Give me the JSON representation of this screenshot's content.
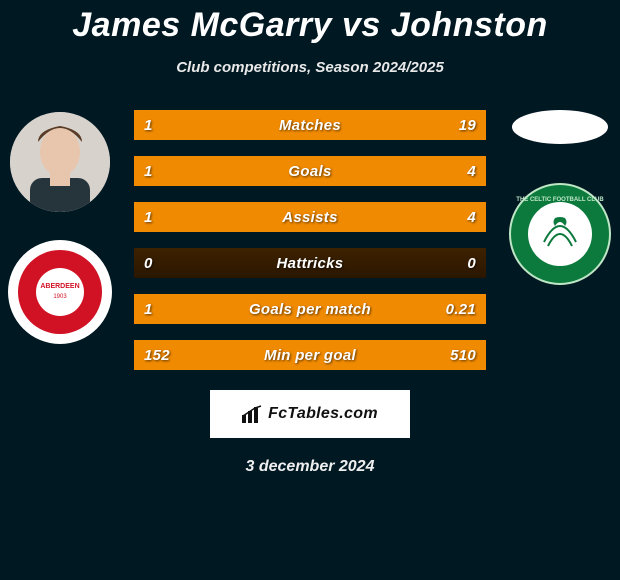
{
  "title": "James McGarry vs Johnston",
  "subtitle": "Club competitions, Season 2024/2025",
  "brand": "FcTables.com",
  "date": "3 december 2024",
  "bar": {
    "bg_dark": "#2a1600",
    "fill": "#f08a00",
    "track_w": 352
  },
  "left_player": {
    "name": "James McGarry",
    "club": "Aberdeen"
  },
  "right_player": {
    "name": "Johnston",
    "club": "Celtic"
  },
  "stats": [
    {
      "label": "Matches",
      "l": "1",
      "r": "19",
      "lw": 18,
      "rw": 334
    },
    {
      "label": "Goals",
      "l": "1",
      "r": "4",
      "lw": 70,
      "rw": 282
    },
    {
      "label": "Assists",
      "l": "1",
      "r": "4",
      "lw": 70,
      "rw": 282
    },
    {
      "label": "Hattricks",
      "l": "0",
      "r": "0",
      "lw": 0,
      "rw": 0
    },
    {
      "label": "Goals per match",
      "l": "1",
      "r": "0.21",
      "lw": 260,
      "rw": 92
    },
    {
      "label": "Min per goal",
      "l": "152",
      "r": "510",
      "lw": 81,
      "rw": 271
    }
  ]
}
